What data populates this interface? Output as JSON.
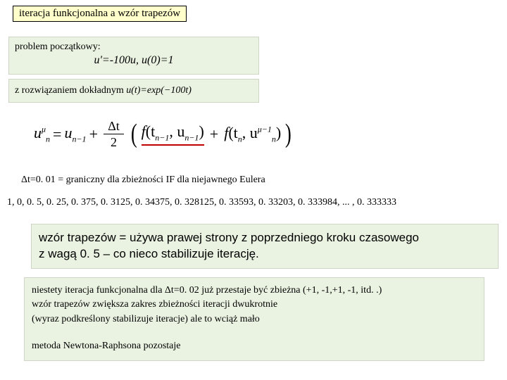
{
  "title": "iteracja funkcjonalna a wzór trapezów",
  "box1": {
    "label": "problem początkowy:",
    "equation": "u'=-100u,  u(0)=1"
  },
  "box2": {
    "prefix": "z rozwiązaniem dokładnym ",
    "expr": "u(t)=exp(−100t)"
  },
  "formula": {
    "lhs_base": "u",
    "lhs_sup": "μ",
    "lhs_sub": "n",
    "eq": "=",
    "rhs1_base": "u",
    "rhs1_sub": "n−1",
    "plus": "+",
    "frac_num": "Δt",
    "frac_den": "2",
    "paren_open": "(",
    "f1_f": "f",
    "f1_args": "(t",
    "f1_sub1": "n−1",
    "f1_mid": ", u",
    "f1_sub2": "n−1",
    "f1_close": ")",
    "plus2": "+",
    "f2_f": "f",
    "f2_args": "(t",
    "f2_sub1": "n",
    "f2_mid": ", u",
    "f2_sup": "μ−1",
    "f2_sub2": "n",
    "f2_close": ")",
    "paren_close": ")"
  },
  "ftext": "Δt=0. 01 = graniczny dla zbieżności IF dla niejawnego Eulera",
  "sequence": "1, 0,  0. 5,  0. 25,  0. 375,  0. 3125,   0. 34375, 0. 328125, 0. 33593, 0. 33203, 0. 333984, ... , 0. 333333",
  "box3": {
    "line1": "wzór trapezów = używa prawej strony z poprzedniego kroku czasowego",
    "line2": "z wagą 0. 5 – co nieco stabilizuje iterację."
  },
  "box4": {
    "line1": "niestety iteracja funkcjonalna dla Δt=0. 02 już przestaje być zbieżna (+1, -1,+1, -1, itd. .)",
    "line2": "wzór trapezów zwiększa zakres zbieżności iteracji dwukrotnie",
    "line3": "(wyraz podkreślony stabilizuje iteracje) ale to wciąż mało",
    "line4": "metoda Newtona-Raphsona pozostaje"
  },
  "colors": {
    "highlight_bg": "#ffffcc",
    "panel_bg": "#eaf3e2",
    "underline": "#c00000"
  }
}
